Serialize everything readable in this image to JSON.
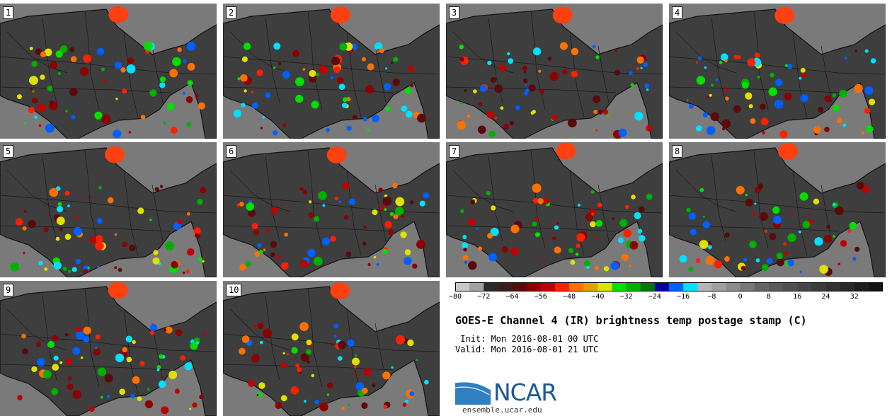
{
  "panels": [
    {
      "label": "1"
    },
    {
      "label": "2"
    },
    {
      "label": "3"
    },
    {
      "label": "4"
    },
    {
      "label": "5"
    },
    {
      "label": "6"
    },
    {
      "label": "7"
    },
    {
      "label": "8"
    },
    {
      "label": "9"
    },
    {
      "label": "10"
    }
  ],
  "colorbar": {
    "colors": [
      "#c8c8c8",
      "#a0a0a0",
      "#2a2a2a",
      "#3c1c1c",
      "#5a0a0a",
      "#8c0000",
      "#c00000",
      "#ff2000",
      "#ff7000",
      "#e0a000",
      "#e0e000",
      "#00e000",
      "#00b000",
      "#007800",
      "#0000a0",
      "#0060ff",
      "#00e0ff",
      "#b4b4b4",
      "#a0a0a0",
      "#8c8c8c",
      "#787878",
      "#646464",
      "#5a5a5a",
      "#505050",
      "#464646",
      "#3c3c3c",
      "#323232",
      "#282828",
      "#1e1e1e",
      "#141414"
    ],
    "ticks": [
      "−80",
      "−72",
      "−64",
      "−56",
      "−48",
      "−40",
      "−32",
      "−24",
      "−16",
      "−8",
      "0",
      "8",
      "16",
      "24",
      "32"
    ]
  },
  "title": "GOES-E Channel 4 (IR) brightness temp postage stamp (C)",
  "init": " Init: Mon 2016-08-01 00 UTC",
  "valid": "Valid: Mon 2016-08-01 21 UTC",
  "logo": {
    "name": "NCAR",
    "url": "ensemble.ucar.edu",
    "color": "#1b5a96"
  }
}
